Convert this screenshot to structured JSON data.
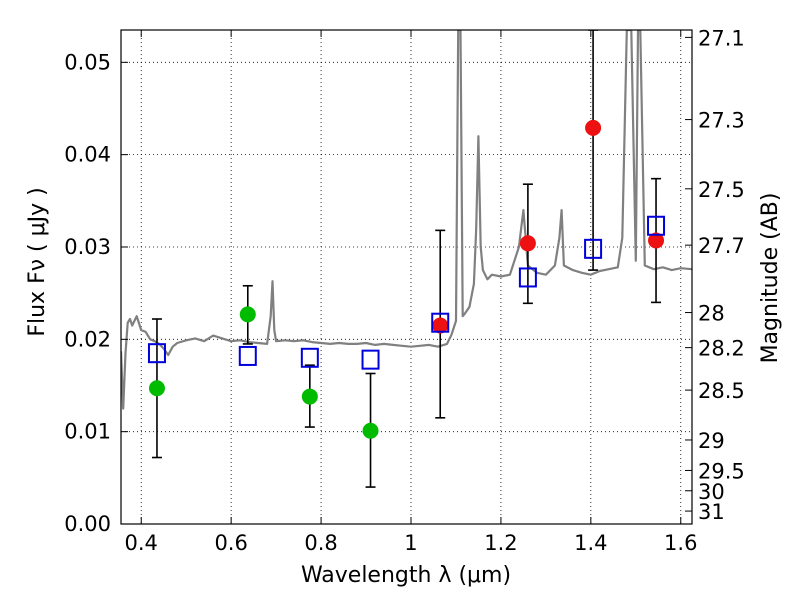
{
  "chart_data": {
    "type": "scatter",
    "xlabel": "Wavelength  λ (μm)",
    "ylabel": "Flux  Fν  ( μJy )",
    "ylabel_right": "Magnitude (AB)",
    "xlim": [
      0.355,
      1.625
    ],
    "ylim": [
      0.0,
      0.0535
    ],
    "grid": true,
    "x_ticks": [
      0.4,
      0.6,
      0.8,
      1.0,
      1.2,
      1.4,
      1.6
    ],
    "x_tick_labels": [
      "0.4",
      "0.6",
      "0.8",
      "1",
      "1.2",
      "1.4",
      "1.6"
    ],
    "y_ticks": [
      0.0,
      0.01,
      0.02,
      0.03,
      0.04,
      0.05
    ],
    "y_tick_labels": [
      "0.00",
      "0.01",
      "0.02",
      "0.03",
      "0.04",
      "0.05"
    ],
    "right_axis_ticks": [
      {
        "label": "27.1",
        "flux": 0.0527
      },
      {
        "label": "27.3",
        "flux": 0.0438
      },
      {
        "label": "27.5",
        "flux": 0.0363
      },
      {
        "label": "27.7",
        "flux": 0.0302
      },
      {
        "label": "28",
        "flux": 0.0229
      },
      {
        "label": "28.2",
        "flux": 0.0191
      },
      {
        "label": "28.5",
        "flux": 0.0145
      },
      {
        "label": "29",
        "flux": 0.0091
      },
      {
        "label": "29.5",
        "flux": 0.0058
      },
      {
        "label": "30",
        "flux": 0.0036
      },
      {
        "label": "31",
        "flux": 0.0014
      }
    ],
    "series": [
      {
        "marker": "circle",
        "color": "#00bb00",
        "points": [
          {
            "x": 0.435,
            "y": 0.0147,
            "err_lo": 0.0072,
            "err_hi": 0.0222
          },
          {
            "x": 0.637,
            "y": 0.0227,
            "err_lo": 0.0195,
            "err_hi": 0.0258
          },
          {
            "x": 0.775,
            "y": 0.0138,
            "err_lo": 0.0105,
            "err_hi": 0.0172
          },
          {
            "x": 0.91,
            "y": 0.0101,
            "err_lo": 0.004,
            "err_hi": 0.0163
          }
        ]
      },
      {
        "marker": "circle",
        "color": "#ee1111",
        "points": [
          {
            "x": 1.065,
            "y": 0.0215,
            "err_lo": 0.0115,
            "err_hi": 0.0318
          },
          {
            "x": 1.26,
            "y": 0.0304,
            "err_lo": 0.0239,
            "err_hi": 0.0368
          },
          {
            "x": 1.405,
            "y": 0.0429,
            "err_lo": 0.0275,
            "err_hi": 0.0535
          },
          {
            "x": 1.545,
            "y": 0.0307,
            "err_lo": 0.024,
            "err_hi": 0.0374
          }
        ]
      },
      {
        "marker": "open-square",
        "color": "#0000dd",
        "points": [
          {
            "x": 0.435,
            "y": 0.0185
          },
          {
            "x": 0.637,
            "y": 0.0182
          },
          {
            "x": 0.775,
            "y": 0.018
          },
          {
            "x": 0.91,
            "y": 0.0178
          },
          {
            "x": 1.065,
            "y": 0.0218
          },
          {
            "x": 1.26,
            "y": 0.0267
          },
          {
            "x": 1.405,
            "y": 0.0298
          },
          {
            "x": 1.545,
            "y": 0.0323
          }
        ]
      },
      {
        "type": "line",
        "color": "#808080",
        "x": [
          0.355,
          0.36,
          0.365,
          0.37,
          0.375,
          0.38,
          0.39,
          0.4,
          0.41,
          0.42,
          0.43,
          0.44,
          0.45,
          0.46,
          0.47,
          0.48,
          0.5,
          0.52,
          0.54,
          0.56,
          0.58,
          0.6,
          0.62,
          0.64,
          0.66,
          0.68,
          0.688,
          0.692,
          0.696,
          0.7,
          0.72,
          0.74,
          0.76,
          0.78,
          0.8,
          0.82,
          0.84,
          0.86,
          0.88,
          0.9,
          0.92,
          0.94,
          0.96,
          0.98,
          1.0,
          1.02,
          1.04,
          1.06,
          1.08,
          1.09,
          1.1,
          1.105,
          1.11,
          1.115,
          1.12,
          1.13,
          1.14,
          1.145,
          1.15,
          1.155,
          1.16,
          1.17,
          1.18,
          1.2,
          1.22,
          1.24,
          1.25,
          1.26,
          1.28,
          1.3,
          1.32,
          1.33,
          1.335,
          1.34,
          1.36,
          1.38,
          1.4,
          1.42,
          1.44,
          1.46,
          1.47,
          1.48,
          1.49,
          1.5,
          1.505,
          1.51,
          1.52,
          1.54,
          1.56,
          1.58,
          1.6,
          1.625
        ],
        "y": [
          0.0187,
          0.0125,
          0.0185,
          0.0218,
          0.0222,
          0.0215,
          0.0225,
          0.021,
          0.0208,
          0.02,
          0.0198,
          0.0195,
          0.019,
          0.0183,
          0.0192,
          0.0196,
          0.0199,
          0.0201,
          0.0198,
          0.0204,
          0.0201,
          0.0198,
          0.0199,
          0.0197,
          0.0196,
          0.0195,
          0.0225,
          0.0263,
          0.021,
          0.0198,
          0.0199,
          0.0198,
          0.0199,
          0.0197,
          0.0196,
          0.0195,
          0.0196,
          0.0195,
          0.0195,
          0.0196,
          0.0194,
          0.0195,
          0.0194,
          0.0193,
          0.0192,
          0.0193,
          0.0194,
          0.0192,
          0.0195,
          0.0205,
          0.022,
          0.0535,
          0.0535,
          0.0225,
          0.0228,
          0.0235,
          0.026,
          0.032,
          0.042,
          0.03,
          0.0275,
          0.0265,
          0.027,
          0.0268,
          0.027,
          0.03,
          0.034,
          0.028,
          0.0272,
          0.027,
          0.028,
          0.031,
          0.034,
          0.028,
          0.0275,
          0.0272,
          0.027,
          0.0274,
          0.0276,
          0.0278,
          0.031,
          0.0535,
          0.0535,
          0.0285,
          0.0535,
          0.0535,
          0.028,
          0.0276,
          0.0278,
          0.0275,
          0.0277,
          0.0276
        ]
      }
    ]
  }
}
